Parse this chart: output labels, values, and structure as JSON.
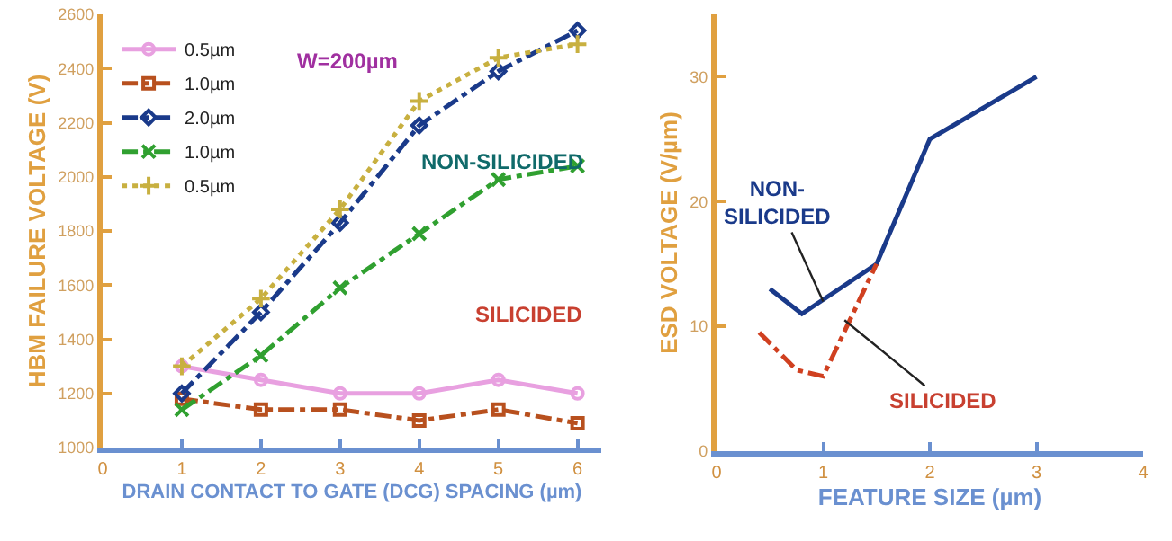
{
  "chart_data": [
    {
      "type": "line",
      "xlabel": "DRAIN CONTACT TO GATE (DCG) SPACING (µm)",
      "ylabel": "HBM FAILURE VOLTAGE (V)",
      "x": [
        1,
        2,
        3,
        4,
        5,
        6
      ],
      "series": [
        {
          "name": "0.5µm",
          "color": "#e8a0e0",
          "marker": "circle",
          "line_style": "solid",
          "values": [
            1300,
            1250,
            1200,
            1200,
            1250,
            1200
          ]
        },
        {
          "name": "1.0µm",
          "color": "#b8501e",
          "marker": "square",
          "line_style": "dashed",
          "values": [
            1180,
            1140,
            1140,
            1100,
            1140,
            1090
          ]
        },
        {
          "name": "2.0µm",
          "color": "#1a3a8a",
          "marker": "diamond",
          "line_style": "dashed",
          "values": [
            1200,
            1500,
            1830,
            2190,
            2390,
            2540
          ]
        },
        {
          "name": "1.0µm",
          "color": "#30a030",
          "marker": "cross",
          "line_style": "dashed",
          "values": [
            1140,
            1340,
            1590,
            1790,
            1990,
            2040
          ]
        },
        {
          "name": "0.5µm",
          "color": "#c8b040",
          "marker": "cross",
          "line_style": "dotted",
          "values": [
            1300,
            1550,
            1880,
            2280,
            2440,
            2490
          ]
        }
      ],
      "annotations": [
        "W=200µm",
        "NON-SILICIDED",
        "SILICIDED"
      ],
      "xlim": [
        0,
        6.3
      ],
      "xticks": [
        0,
        1,
        2,
        3,
        4,
        5,
        6
      ],
      "ylim": [
        1000,
        2600
      ],
      "yticks": [
        1000,
        1200,
        1400,
        1600,
        1800,
        2000,
        2200,
        2400,
        2600
      ],
      "grid": false,
      "legend": "top left"
    },
    {
      "type": "line",
      "xlabel": "FEATURE SIZE (µm)",
      "ylabel": "ESD VOLTAGE (V/µm)",
      "series": [
        {
          "color": "#1a3a8a",
          "line_style": "solid",
          "x": [
            0.5,
            0.8,
            1.5,
            2,
            3
          ],
          "values": [
            13,
            11,
            15,
            25,
            30
          ]
        },
        {
          "color": "#d04020",
          "line_style": "dashed",
          "x": [
            0.4,
            0.75,
            1,
            1.5
          ],
          "values": [
            9.5,
            6.5,
            6,
            15
          ]
        }
      ],
      "annotations": [
        {
          "text": "NON-SILICIDED",
          "x": 1,
          "y": 12
        },
        {
          "text": "SILICIDED",
          "x": 1.2,
          "y": 10.5
        }
      ],
      "xlim": [
        0,
        4
      ],
      "xticks": [
        0,
        1,
        2,
        3,
        4
      ],
      "ylim": [
        0,
        35
      ],
      "yticks": [
        0,
        10,
        20,
        30
      ],
      "grid": false
    }
  ]
}
